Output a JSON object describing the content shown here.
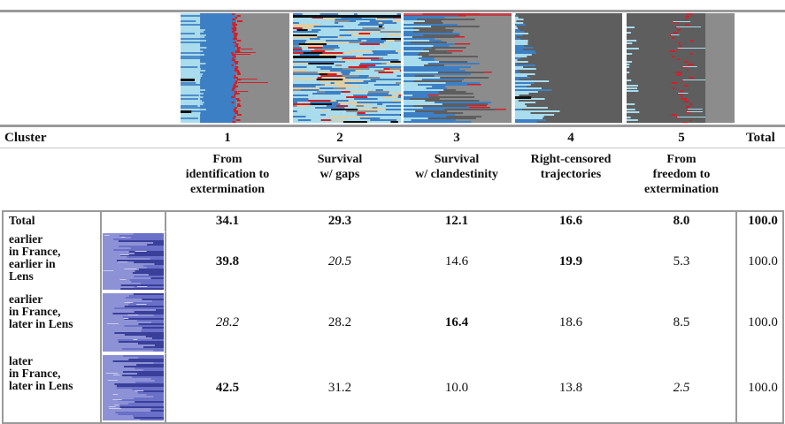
{
  "header": {
    "cluster_label": "Cluster",
    "total_label": "Total",
    "clusters": [
      {
        "number": "1",
        "name_lines": [
          "From",
          "identification to",
          "extermination"
        ]
      },
      {
        "number": "2",
        "name_lines": [
          "Survival",
          "w/ gaps"
        ]
      },
      {
        "number": "3",
        "name_lines": [
          "Survival",
          "w/ clandestinity"
        ]
      },
      {
        "number": "4",
        "name_lines": [
          "Right-censored",
          "trajectories"
        ]
      },
      {
        "number": "5",
        "name_lines": [
          "From",
          "freedom to",
          "extermination"
        ]
      }
    ]
  },
  "rows": [
    {
      "label_lines": [
        "Total"
      ],
      "cells": [
        {
          "value": "34.1",
          "style": "bold"
        },
        {
          "value": "29.3",
          "style": "bold"
        },
        {
          "value": "12.1",
          "style": "bold"
        },
        {
          "value": "16.6",
          "style": "bold"
        },
        {
          "value": "8.0",
          "style": "bold"
        }
      ],
      "total": {
        "value": "100.0",
        "style": "bold"
      }
    },
    {
      "label_lines": [
        "earlier",
        "in France,",
        "earlier in",
        "Lens"
      ],
      "cells": [
        {
          "value": "39.8",
          "style": "bold"
        },
        {
          "value": "20.5",
          "style": "italic"
        },
        {
          "value": "14.6",
          "style": "normal"
        },
        {
          "value": "19.9",
          "style": "bold"
        },
        {
          "value": "5.3",
          "style": "normal"
        }
      ],
      "total": {
        "value": "100.0",
        "style": "normal"
      }
    },
    {
      "label_lines": [
        "earlier",
        "in France,",
        "later in Lens"
      ],
      "cells": [
        {
          "value": "28.2",
          "style": "italic"
        },
        {
          "value": "28.2",
          "style": "normal"
        },
        {
          "value": "16.4",
          "style": "bold"
        },
        {
          "value": "18.6",
          "style": "normal"
        },
        {
          "value": "8.5",
          "style": "normal"
        }
      ],
      "total": {
        "value": "100.0",
        "style": "normal"
      }
    },
    {
      "label_lines": [
        "later",
        "in France,",
        "later in Lens"
      ],
      "cells": [
        {
          "value": "42.5",
          "style": "bold"
        },
        {
          "value": "31.2",
          "style": "normal"
        },
        {
          "value": "10.0",
          "style": "normal"
        },
        {
          "value": "13.8",
          "style": "normal"
        },
        {
          "value": "2.5",
          "style": "italic"
        }
      ],
      "total": {
        "value": "100.0",
        "style": "normal"
      }
    }
  ],
  "colors": {
    "light_blue": "#a9dcec",
    "mid_blue": "#3d7fc4",
    "grey": "#8c8c8c",
    "dark_grey": "#5e5e5e",
    "black": "#111111",
    "red": "#d11f2a",
    "beige": "#e0cfa4",
    "periwinkle": "#8d92d6",
    "navy": "#3a3f9a"
  }
}
